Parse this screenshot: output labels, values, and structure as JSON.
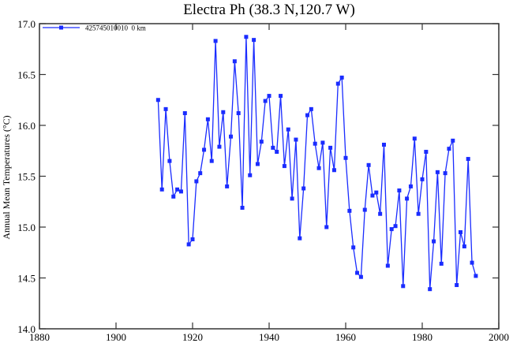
{
  "chart_data": {
    "type": "line",
    "title": "Electra Ph (38.3 N,120.7 W)",
    "xlabel": "",
    "ylabel": "Annual Mean Temperatures (°C)",
    "xlim": [
      1880,
      2000
    ],
    "ylim": [
      14.0,
      17.0
    ],
    "xticks": [
      1880,
      1900,
      1920,
      1940,
      1960,
      1980,
      2000
    ],
    "yticks": [
      "14.0",
      "14.5",
      "15.0",
      "15.5",
      "16.0",
      "16.5",
      "17.0"
    ],
    "grid": false,
    "legend_position": "top-left",
    "series": [
      {
        "name": "425745010010  0 km",
        "color": "#1a2cff",
        "marker": "square",
        "x": [
          1911,
          1912,
          1913,
          1914,
          1915,
          1916,
          1917,
          1918,
          1919,
          1920,
          1921,
          1922,
          1923,
          1924,
          1925,
          1926,
          1927,
          1928,
          1929,
          1930,
          1931,
          1932,
          1933,
          1934,
          1935,
          1936,
          1937,
          1938,
          1939,
          1940,
          1941,
          1942,
          1943,
          1944,
          1945,
          1946,
          1947,
          1948,
          1949,
          1950,
          1951,
          1952,
          1953,
          1954,
          1955,
          1956,
          1957,
          1958,
          1959,
          1960,
          1961,
          1962,
          1963,
          1964,
          1965,
          1966,
          1967,
          1968,
          1969,
          1970,
          1971,
          1972,
          1973,
          1974,
          1975,
          1976,
          1977,
          1978,
          1979,
          1980,
          1981,
          1982,
          1983,
          1984,
          1985,
          1986,
          1987,
          1988,
          1989,
          1990,
          1991,
          1992,
          1993,
          1994
        ],
        "y": [
          16.25,
          15.37,
          16.16,
          15.65,
          15.3,
          15.37,
          15.35,
          16.12,
          14.83,
          14.88,
          15.45,
          15.53,
          15.76,
          16.06,
          15.65,
          16.83,
          15.79,
          16.13,
          15.4,
          15.89,
          16.63,
          16.12,
          15.19,
          16.87,
          15.51,
          16.84,
          15.62,
          15.84,
          16.24,
          16.29,
          15.78,
          15.74,
          16.29,
          15.6,
          15.96,
          15.28,
          15.86,
          14.89,
          15.38,
          16.1,
          16.16,
          15.82,
          15.58,
          15.83,
          15.0,
          15.78,
          15.56,
          16.41,
          16.47,
          15.68,
          15.16,
          14.8,
          14.55,
          14.51,
          15.17,
          15.61,
          15.31,
          15.34,
          15.13,
          15.81,
          14.62,
          14.98,
          15.01,
          15.36,
          14.42,
          15.28,
          15.4,
          15.87,
          15.13,
          15.47,
          15.74,
          14.39,
          14.86,
          15.54,
          14.64,
          15.53,
          15.77,
          15.85,
          14.43,
          14.95,
          14.81,
          15.67,
          14.65,
          14.52
        ]
      }
    ]
  }
}
